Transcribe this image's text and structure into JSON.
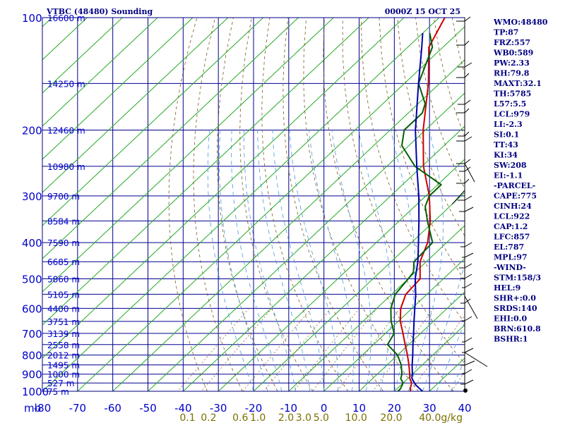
{
  "header": {
    "station": "VTBC (48480) Sounding",
    "time": "0000Z 15 OCT 25"
  },
  "indices": [
    "WMO:48480",
    "TP:87",
    "FRZ:557",
    "WB0:589",
    "PW:2.33",
    "RH:79.8",
    "MAXT:32.1",
    "TH:5785",
    "L57:5.5",
    "LCL:979",
    "LI:-2.3",
    "SI:0.1",
    "TT:43",
    "KI:34",
    "SW:208",
    "EI:-1.1",
    "-PARCEL-",
    "CAPE:775",
    "CINH:24",
    "LCL:922",
    "CAP:1.2",
    "LFC:857",
    "EL:787",
    "MPL:97",
    "-WIND-",
    "STM:158/3",
    "HEL:9",
    "SHR+:0.0",
    "SRDS:140",
    "EHI:0.0",
    "BRN:610.8",
    "BSHR:1"
  ],
  "chart_data": {
    "type": "line",
    "title": "VTBC (48480) Sounding",
    "subtitle": "0000Z 15 OCT 25",
    "pressure_unit_label": "mb",
    "pressure_ticks": [
      100,
      200,
      300,
      400,
      500,
      600,
      700,
      800,
      900,
      1000
    ],
    "pressure_range": [
      100,
      1000
    ],
    "temperature_ticks": [
      -80,
      -70,
      -60,
      -50,
      -40,
      -30,
      -20,
      -10,
      0,
      10,
      20,
      30,
      40
    ],
    "temperature_range": [
      -80,
      40
    ],
    "height_labels": [
      {
        "p": 100,
        "label": "16600 m"
      },
      {
        "p": 150,
        "label": "14250 m"
      },
      {
        "p": 200,
        "label": "12460 m"
      },
      {
        "p": 250,
        "label": "10980 m"
      },
      {
        "p": 300,
        "label": "9700 m"
      },
      {
        "p": 350,
        "label": "8584 m"
      },
      {
        "p": 400,
        "label": "7590 m"
      },
      {
        "p": 450,
        "label": "6685 m"
      },
      {
        "p": 500,
        "label": "5860 m"
      },
      {
        "p": 550,
        "label": "5105 m"
      },
      {
        "p": 600,
        "label": "4400 m"
      },
      {
        "p": 650,
        "label": "3751 m"
      },
      {
        "p": 700,
        "label": "3139 m"
      },
      {
        "p": 750,
        "label": "2558 m"
      },
      {
        "p": 800,
        "label": "2012 m"
      },
      {
        "p": 850,
        "label": "1495 m"
      },
      {
        "p": 900,
        "label": "1000 m"
      },
      {
        "p": 950,
        "label": "527 m"
      },
      {
        "p": 1000,
        "label": "75 m"
      }
    ],
    "mixing_ratio_labels": [
      {
        "label": "0.1",
        "t": -41
      },
      {
        "label": "0.2",
        "t": -35
      },
      {
        "label": "0.6",
        "t": -26
      },
      {
        "label": "1.0",
        "t": -21
      },
      {
        "label": "2.0",
        "t": -13
      },
      {
        "label": "3.0",
        "t": -8
      },
      {
        "label": "5.0",
        "t": -3
      },
      {
        "label": "10.0",
        "t": 6
      },
      {
        "label": "20.0",
        "t": 16
      },
      {
        "label": "40.0g/kg",
        "t": 27
      }
    ],
    "series": [
      {
        "name": "Temperature",
        "color": "#cc0000",
        "points": [
          [
            1000,
            24.6
          ],
          [
            985,
            23.8
          ],
          [
            950,
            22.4
          ],
          [
            925,
            20.6
          ],
          [
            900,
            19.2
          ],
          [
            850,
            16.2
          ],
          [
            800,
            12.8
          ],
          [
            750,
            9.0
          ],
          [
            700,
            5.0
          ],
          [
            650,
            0.6
          ],
          [
            600,
            -3.2
          ],
          [
            550,
            -6.0
          ],
          [
            500,
            -6.6
          ],
          [
            450,
            -11.8
          ],
          [
            400,
            -15.4
          ],
          [
            350,
            -21.2
          ],
          [
            300,
            -29.0
          ],
          [
            250,
            -39.6
          ],
          [
            200,
            -50.6
          ],
          [
            150,
            -63.2
          ],
          [
            120,
            -74.0
          ],
          [
            100,
            -78.4
          ]
        ]
      },
      {
        "name": "Dewpoint",
        "color": "#006000",
        "points": [
          [
            1000,
            21.0
          ],
          [
            985,
            21.0
          ],
          [
            950,
            20.0
          ],
          [
            925,
            18.0
          ],
          [
            900,
            17.0
          ],
          [
            850,
            14.0
          ],
          [
            800,
            10.0
          ],
          [
            750,
            4.0
          ],
          [
            700,
            2.5
          ],
          [
            650,
            -2.0
          ],
          [
            600,
            -6.0
          ],
          [
            550,
            -9.0
          ],
          [
            500,
            -10.0
          ],
          [
            480,
            -10.5
          ],
          [
            450,
            -13.5
          ],
          [
            400,
            -14.0
          ],
          [
            350,
            -22.0
          ],
          [
            320,
            -27.0
          ],
          [
            300,
            -29.0
          ],
          [
            280,
            -29.0
          ],
          [
            250,
            -42.0
          ],
          [
            220,
            -52.0
          ],
          [
            200,
            -56.0
          ],
          [
            180,
            -56.0
          ],
          [
            170,
            -58.0
          ],
          [
            150,
            -66.0
          ],
          [
            120,
            -73.0
          ],
          [
            110,
            -78.0
          ]
        ]
      },
      {
        "name": "Parcel",
        "color": "#0000aa",
        "points": [
          [
            1000,
            28.0
          ],
          [
            960,
            24.0
          ],
          [
            922,
            21.0
          ],
          [
            900,
            20.0
          ],
          [
            857,
            17.5
          ],
          [
            800,
            14.3
          ],
          [
            750,
            11.2
          ],
          [
            700,
            8.0
          ],
          [
            650,
            4.5
          ],
          [
            600,
            0.8
          ],
          [
            550,
            -3.2
          ],
          [
            500,
            -8.0
          ],
          [
            450,
            -12.4
          ],
          [
            400,
            -18.0
          ],
          [
            350,
            -24.4
          ],
          [
            300,
            -32.0
          ],
          [
            250,
            -41.5
          ],
          [
            200,
            -52.8
          ],
          [
            150,
            -66.0
          ],
          [
            120,
            -76.0
          ],
          [
            110,
            -80.0
          ]
        ]
      }
    ]
  }
}
